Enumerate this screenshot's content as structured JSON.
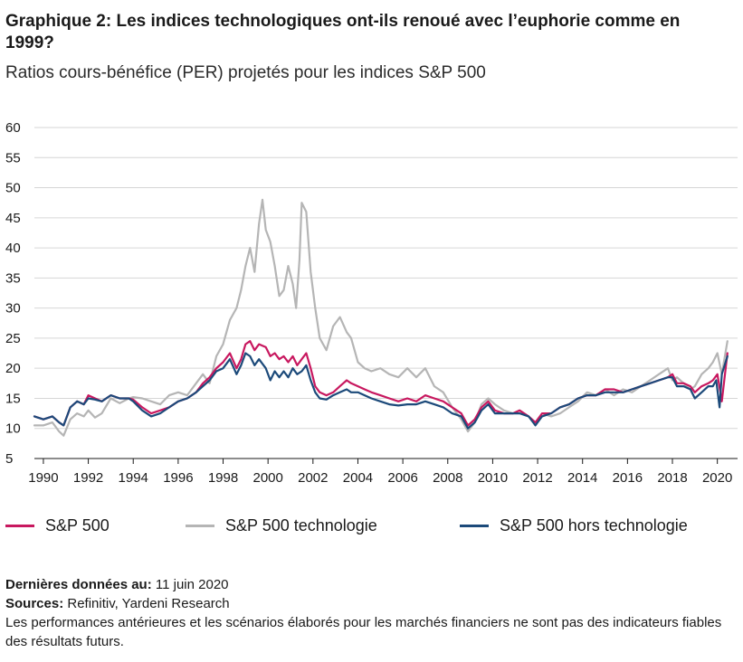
{
  "header": {
    "title": "Graphique 2: Les indices technologiques ont-ils renoué avec l’euphorie comme en 1999?",
    "subtitle": "Ratios cours-bénéfice (PER) projetés pour les indices S&P 500"
  },
  "footer": {
    "last_data_label": "Dernières données au:",
    "last_data_value": "11 juin 2020",
    "sources_label": "Sources:",
    "sources_value": "Refinitiv, Yardeni Research",
    "disclaimer": "Les performances antérieures et les scénarios élaborés pour les marchés financiers ne sont pas des indicateurs fiables des résultats futurs."
  },
  "colors": {
    "sp500": "#c8185f",
    "tech": "#b5b5b5",
    "ex_tech": "#1c4a7a",
    "grid": "#d6d6d6",
    "axis": "#1a1a1a"
  },
  "chart_data": {
    "type": "line",
    "title": "",
    "xlabel": "",
    "ylabel": "",
    "xlim": [
      1989.6,
      2020.9
    ],
    "ylim": [
      5,
      60
    ],
    "y_ticks": [
      5,
      10,
      15,
      20,
      25,
      30,
      35,
      40,
      45,
      50,
      55,
      60
    ],
    "x_ticks": [
      1990,
      1992,
      1994,
      1996,
      1998,
      2000,
      2002,
      2004,
      2006,
      2008,
      2010,
      2012,
      2014,
      2016,
      2018,
      2020
    ],
    "grid": "horizontal",
    "legend_position": "bottom",
    "series": [
      {
        "name": "S&P 500 technologie",
        "color": "#b5b5b5",
        "x": [
          1989.6,
          1990.0,
          1990.4,
          1990.7,
          1990.9,
          1991.2,
          1991.5,
          1991.8,
          1992.0,
          1992.3,
          1992.6,
          1993.0,
          1993.4,
          1993.8,
          1994.0,
          1994.4,
          1994.8,
          1995.2,
          1995.6,
          1996.0,
          1996.4,
          1996.8,
          1997.1,
          1997.4,
          1997.7,
          1998.0,
          1998.3,
          1998.6,
          1998.8,
          1999.0,
          1999.2,
          1999.4,
          1999.6,
          1999.75,
          1999.9,
          2000.1,
          2000.3,
          2000.5,
          2000.7,
          2000.9,
          2001.1,
          2001.25,
          2001.4,
          2001.5,
          2001.7,
          2001.9,
          2002.1,
          2002.3,
          2002.6,
          2002.9,
          2003.2,
          2003.5,
          2003.7,
          2004.0,
          2004.3,
          2004.6,
          2005.0,
          2005.4,
          2005.8,
          2006.2,
          2006.6,
          2007.0,
          2007.4,
          2007.8,
          2008.2,
          2008.6,
          2008.9,
          2009.2,
          2009.5,
          2009.8,
          2010.1,
          2010.5,
          2010.9,
          2011.2,
          2011.6,
          2011.9,
          2012.2,
          2012.6,
          2013.0,
          2013.4,
          2013.8,
          2014.2,
          2014.6,
          2015.0,
          2015.4,
          2015.8,
          2016.2,
          2016.6,
          2017.0,
          2017.4,
          2017.8,
          2018.0,
          2018.2,
          2018.5,
          2018.8,
          2019.0,
          2019.3,
          2019.6,
          2019.8,
          2020.0,
          2020.2,
          2020.45
        ],
        "y": [
          10.5,
          10.5,
          11.0,
          9.5,
          8.8,
          11.5,
          12.5,
          12.0,
          13.0,
          11.8,
          12.5,
          15.0,
          14.2,
          15.0,
          15.2,
          15.0,
          14.5,
          14.0,
          15.5,
          16.0,
          15.5,
          17.5,
          19.0,
          17.5,
          22.0,
          24.0,
          28.0,
          30.0,
          33.0,
          37.0,
          40.0,
          36.0,
          44.0,
          48.0,
          43.0,
          41.0,
          37.0,
          32.0,
          33.0,
          37.0,
          34.0,
          30.0,
          38.0,
          47.5,
          46.0,
          36.0,
          30.0,
          25.0,
          23.0,
          27.0,
          28.5,
          26.0,
          25.0,
          21.0,
          20.0,
          19.5,
          20.0,
          19.0,
          18.5,
          20.0,
          18.5,
          20.0,
          17.0,
          16.0,
          13.5,
          11.5,
          9.5,
          11.0,
          14.0,
          15.0,
          14.0,
          13.0,
          12.5,
          13.0,
          12.0,
          11.0,
          12.5,
          12.0,
          12.5,
          13.5,
          14.5,
          16.0,
          15.5,
          16.5,
          15.5,
          16.5,
          16.0,
          17.0,
          18.0,
          19.0,
          20.0,
          18.0,
          18.5,
          17.5,
          16.5,
          17.0,
          19.0,
          20.0,
          21.0,
          22.5,
          19.0,
          24.5
        ]
      },
      {
        "name": "S&P 500",
        "color": "#c8185f",
        "x": [
          1989.6,
          1990.0,
          1990.4,
          1990.7,
          1990.9,
          1991.2,
          1991.5,
          1991.8,
          1992.0,
          1992.3,
          1992.6,
          1993.0,
          1993.4,
          1993.8,
          1994.0,
          1994.4,
          1994.8,
          1995.2,
          1995.6,
          1996.0,
          1996.4,
          1996.8,
          1997.1,
          1997.4,
          1997.7,
          1998.0,
          1998.3,
          1998.6,
          1998.8,
          1999.0,
          1999.2,
          1999.4,
          1999.6,
          1999.9,
          2000.1,
          2000.3,
          2000.5,
          2000.7,
          2000.9,
          2001.1,
          2001.3,
          2001.5,
          2001.7,
          2001.9,
          2002.1,
          2002.3,
          2002.6,
          2002.9,
          2003.2,
          2003.5,
          2003.7,
          2004.0,
          2004.3,
          2004.6,
          2005.0,
          2005.4,
          2005.8,
          2006.2,
          2006.6,
          2007.0,
          2007.4,
          2007.8,
          2008.2,
          2008.6,
          2008.9,
          2009.2,
          2009.5,
          2009.8,
          2010.1,
          2010.5,
          2010.9,
          2011.2,
          2011.6,
          2011.9,
          2012.2,
          2012.6,
          2013.0,
          2013.4,
          2013.8,
          2014.2,
          2014.6,
          2015.0,
          2015.4,
          2015.8,
          2016.2,
          2016.6,
          2017.0,
          2017.4,
          2017.8,
          2018.0,
          2018.2,
          2018.5,
          2018.8,
          2019.0,
          2019.3,
          2019.6,
          2019.8,
          2020.0,
          2020.2,
          2020.45
        ],
        "y": [
          12.0,
          11.5,
          12.0,
          11.0,
          10.5,
          13.5,
          14.5,
          14.0,
          15.5,
          15.0,
          14.5,
          15.5,
          15.0,
          15.0,
          14.8,
          13.5,
          12.5,
          13.0,
          13.5,
          14.5,
          15.0,
          16.0,
          17.5,
          18.5,
          20.0,
          21.0,
          22.5,
          20.0,
          21.5,
          24.0,
          24.5,
          23.0,
          24.0,
          23.5,
          22.0,
          22.5,
          21.5,
          22.0,
          21.0,
          22.0,
          20.5,
          21.5,
          22.5,
          20.0,
          17.0,
          16.0,
          15.5,
          16.0,
          17.0,
          18.0,
          17.5,
          17.0,
          16.5,
          16.0,
          15.5,
          15.0,
          14.5,
          15.0,
          14.5,
          15.5,
          15.0,
          14.5,
          13.5,
          12.5,
          10.5,
          11.5,
          13.5,
          14.5,
          13.0,
          12.5,
          12.5,
          13.0,
          12.0,
          11.0,
          12.5,
          12.5,
          13.5,
          14.0,
          15.0,
          15.5,
          15.5,
          16.5,
          16.5,
          16.0,
          16.5,
          17.0,
          17.5,
          18.0,
          18.5,
          19.0,
          17.5,
          17.5,
          17.0,
          16.0,
          17.0,
          17.5,
          18.0,
          19.0,
          14.5,
          22.5
        ]
      },
      {
        "name": "S&P 500 hors technologie",
        "color": "#1c4a7a",
        "x": [
          1989.6,
          1990.0,
          1990.4,
          1990.7,
          1990.9,
          1991.2,
          1991.5,
          1991.8,
          1992.0,
          1992.3,
          1992.6,
          1993.0,
          1993.4,
          1993.8,
          1994.0,
          1994.4,
          1994.8,
          1995.2,
          1995.6,
          1996.0,
          1996.4,
          1996.8,
          1997.1,
          1997.4,
          1997.7,
          1998.0,
          1998.3,
          1998.6,
          1998.8,
          1999.0,
          1999.2,
          1999.4,
          1999.6,
          1999.9,
          2000.1,
          2000.3,
          2000.5,
          2000.7,
          2000.9,
          2001.1,
          2001.3,
          2001.5,
          2001.7,
          2001.9,
          2002.1,
          2002.3,
          2002.6,
          2002.9,
          2003.2,
          2003.5,
          2003.7,
          2004.0,
          2004.3,
          2004.6,
          2005.0,
          2005.4,
          2005.8,
          2006.2,
          2006.6,
          2007.0,
          2007.4,
          2007.8,
          2008.2,
          2008.6,
          2008.9,
          2009.2,
          2009.5,
          2009.8,
          2010.1,
          2010.5,
          2010.9,
          2011.2,
          2011.6,
          2011.9,
          2012.2,
          2012.6,
          2013.0,
          2013.4,
          2013.8,
          2014.2,
          2014.6,
          2015.0,
          2015.4,
          2015.8,
          2016.2,
          2016.6,
          2017.0,
          2017.4,
          2017.8,
          2018.0,
          2018.2,
          2018.5,
          2018.8,
          2019.0,
          2019.3,
          2019.6,
          2019.8,
          2019.95,
          2020.1,
          2020.2,
          2020.45
        ],
        "y": [
          12.0,
          11.5,
          12.0,
          11.0,
          10.5,
          13.5,
          14.5,
          14.0,
          15.0,
          14.8,
          14.5,
          15.5,
          15.0,
          15.0,
          14.5,
          13.0,
          12.0,
          12.5,
          13.5,
          14.5,
          15.0,
          16.0,
          17.0,
          18.0,
          19.5,
          20.0,
          21.5,
          19.0,
          20.5,
          22.5,
          22.0,
          20.5,
          21.5,
          20.0,
          18.0,
          19.5,
          18.5,
          19.5,
          18.5,
          20.0,
          19.0,
          19.5,
          20.5,
          18.0,
          16.0,
          15.0,
          14.8,
          15.5,
          16.0,
          16.5,
          16.0,
          16.0,
          15.5,
          15.0,
          14.5,
          14.0,
          13.8,
          14.0,
          14.0,
          14.5,
          14.0,
          13.5,
          12.5,
          12.0,
          10.0,
          11.0,
          13.0,
          14.0,
          12.5,
          12.5,
          12.5,
          12.5,
          12.0,
          10.5,
          12.0,
          12.5,
          13.5,
          14.0,
          15.0,
          15.5,
          15.5,
          16.0,
          16.0,
          16.0,
          16.5,
          17.0,
          17.5,
          18.0,
          18.5,
          18.5,
          17.0,
          17.0,
          16.5,
          15.0,
          16.0,
          17.0,
          17.0,
          18.0,
          13.5,
          19.0,
          22.0
        ]
      }
    ]
  }
}
